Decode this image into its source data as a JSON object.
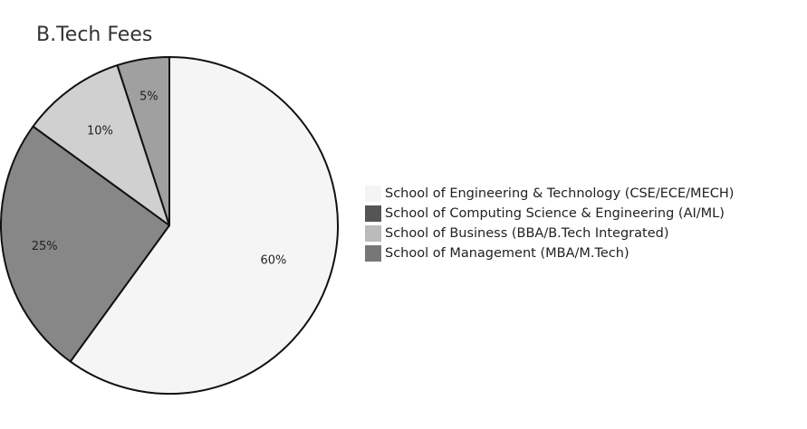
{
  "chart_data": {
    "type": "pie",
    "title": "B.Tech Fees",
    "categories": [
      "School of Engineering & Technology (CSE/ECE/MECH)",
      "School of Computing Science & Engineering (AI/ML)",
      "School of Business (BBA/B.Tech Integrated)",
      "School of Management (MBA/M.Tech)"
    ],
    "values": [
      60,
      25,
      10,
      5
    ],
    "labels": [
      "60%",
      "25%",
      "10%",
      "5%"
    ],
    "slice_colors": [
      "#f5f5f5",
      "#878787",
      "#d0d0d0",
      "#a0a0a0"
    ],
    "legend_colors": [
      "#f4f4f4",
      "#555555",
      "#bbbbbb",
      "#777777"
    ],
    "start_angle": "12 o'clock, clockwise",
    "legend_position": "right"
  },
  "title": "B.Tech Fees",
  "legend": [
    {
      "label": "School of Engineering & Technology (CSE/ECE/MECH)",
      "color": "#f4f4f4"
    },
    {
      "label": "School of Computing Science & Engineering (AI/ML)",
      "color": "#555555"
    },
    {
      "label": "School of Business (BBA/B.Tech Integrated)",
      "color": "#bbbbbb"
    },
    {
      "label": "School of Management (MBA/M.Tech)",
      "color": "#777777"
    }
  ]
}
